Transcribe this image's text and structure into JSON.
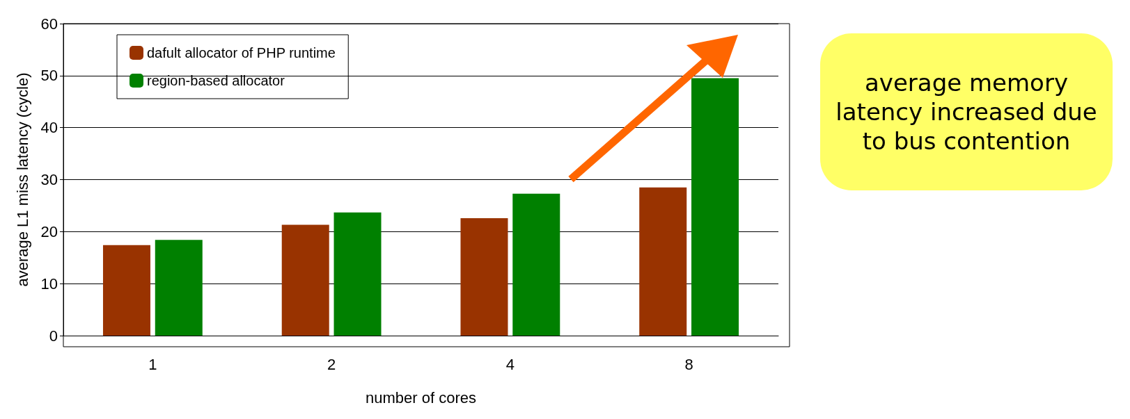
{
  "chart_data": {
    "type": "bar",
    "xlabel": "number of cores",
    "ylabel": "average L1 miss latency (cycle)",
    "categories": [
      "1",
      "2",
      "4",
      "8"
    ],
    "series": [
      {
        "name": "dafult allocator of PHP runtime",
        "color": "#993300",
        "values": [
          17.4,
          21.3,
          22.6,
          28.5
        ]
      },
      {
        "name": "region-based allocator",
        "color": "#008000",
        "values": [
          18.4,
          23.7,
          27.3,
          49.5
        ]
      }
    ],
    "ylim": [
      0,
      60
    ],
    "yticks": [
      0,
      10,
      20,
      30,
      40,
      50,
      60
    ],
    "grid": "y",
    "legend": "top left",
    "annotations": [
      "average memory latency increased due to bus contention"
    ]
  }
}
